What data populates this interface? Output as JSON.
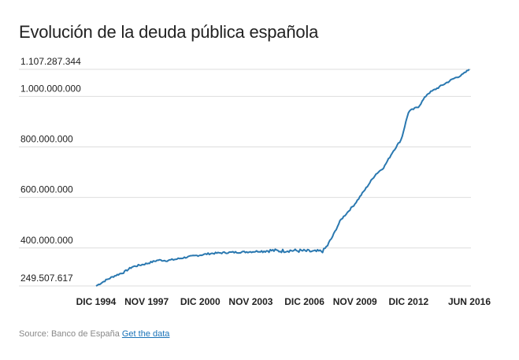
{
  "chart_data": {
    "type": "line",
    "title": "Evolución de la deuda pública española",
    "xlabel": "",
    "ylabel": "",
    "x_tick_labels": [
      "DIC 1994",
      "NOV 1997",
      "DIC 2000",
      "NOV 2003",
      "DIC 2006",
      "NOV 2009",
      "DIC 2012",
      "JUN 2016"
    ],
    "x_tick_values": [
      1994.92,
      1997.83,
      2000.92,
      2003.83,
      2006.92,
      2009.83,
      2012.92,
      2016.42
    ],
    "y_tick_labels": [
      "249.507.617",
      "400.000.000",
      "600.000.000",
      "800.000.000",
      "1.000.000.000",
      "1.107.287.344"
    ],
    "y_tick_values": [
      249507617,
      400000000,
      600000000,
      800000000,
      1000000000,
      1107287344
    ],
    "xlim": [
      1994.92,
      2016.42
    ],
    "ylim": [
      249507617,
      1107287344
    ],
    "grid": true,
    "legend": "none",
    "line_color": "#2a78b0",
    "series": [
      {
        "name": "Deuda pública",
        "x": [
          1994.92,
          1995.5,
          1996.0,
          1996.5,
          1997.0,
          1997.83,
          1998.5,
          1999.0,
          1999.5,
          2000.0,
          2000.92,
          2001.5,
          2002.0,
          2002.5,
          2003.0,
          2003.83,
          2004.5,
          2005.0,
          2005.5,
          2006.0,
          2006.92,
          2007.5,
          2008.0,
          2008.25,
          2008.5,
          2009.0,
          2009.83,
          2010.5,
          2011.0,
          2011.5,
          2012.0,
          2012.5,
          2012.92,
          2013.5,
          2014.0,
          2014.5,
          2015.0,
          2015.5,
          2016.0,
          2016.42
        ],
        "values": [
          249507617,
          273000000,
          290000000,
          303000000,
          325000000,
          338000000,
          352000000,
          350000000,
          355000000,
          362000000,
          372000000,
          378000000,
          380000000,
          382000000,
          383000000,
          385000000,
          388000000,
          390000000,
          388000000,
          390000000,
          388000000,
          385000000,
          388000000,
          410000000,
          440000000,
          510000000,
          575000000,
          640000000,
          690000000,
          720000000,
          780000000,
          830000000,
          940000000,
          960000000,
          1010000000,
          1030000000,
          1050000000,
          1070000000,
          1085000000,
          1107287344
        ]
      }
    ]
  },
  "footer": {
    "source_text": "Source: Banco de España",
    "link_text": "Get the data"
  }
}
